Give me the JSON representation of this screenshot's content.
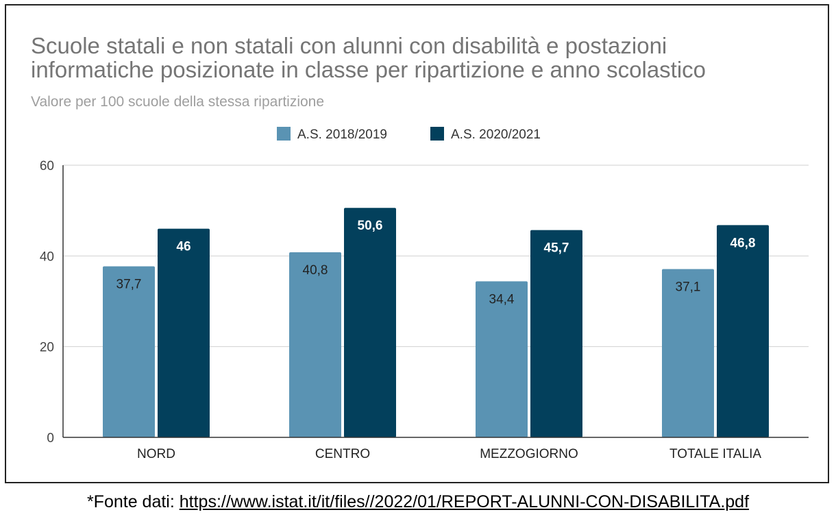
{
  "chart_data": {
    "type": "bar",
    "title_lines": [
      "Scuole statali e non statali con alunni con disabilità e postazioni",
      "informatiche posizionate in classe per ripartizione e anno scolastico"
    ],
    "subtitle": "Valore per 100 scuole della stessa ripartizione",
    "categories": [
      "NORD",
      "CENTRO",
      "MEZZOGIORNO",
      "TOTALE ITALIA"
    ],
    "series": [
      {
        "name": "A.S. 2018/2019",
        "color": "#5a93b3",
        "values": [
          37.7,
          40.8,
          34.4,
          37.1
        ],
        "labels": [
          "37,7",
          "40,8",
          "34,4",
          "37,1"
        ],
        "label_color": "#222222"
      },
      {
        "name": "A.S. 2020/2021",
        "color": "#03405c",
        "values": [
          46,
          50.6,
          45.7,
          46.8
        ],
        "labels": [
          "46",
          "50,6",
          "45,7",
          "46,8"
        ],
        "label_color": "#ffffff"
      }
    ],
    "ylim": [
      0,
      60
    ],
    "yticks": [
      0,
      20,
      40,
      60
    ],
    "grid": true,
    "legend_position": "top-center",
    "xlabel": "",
    "ylabel": ""
  },
  "source": {
    "prefix": "*Fonte dati: ",
    "link_text": "https://www.istat.it/it/files//2022/01/REPORT-ALUNNI-CON-DISABILITA.pdf"
  }
}
